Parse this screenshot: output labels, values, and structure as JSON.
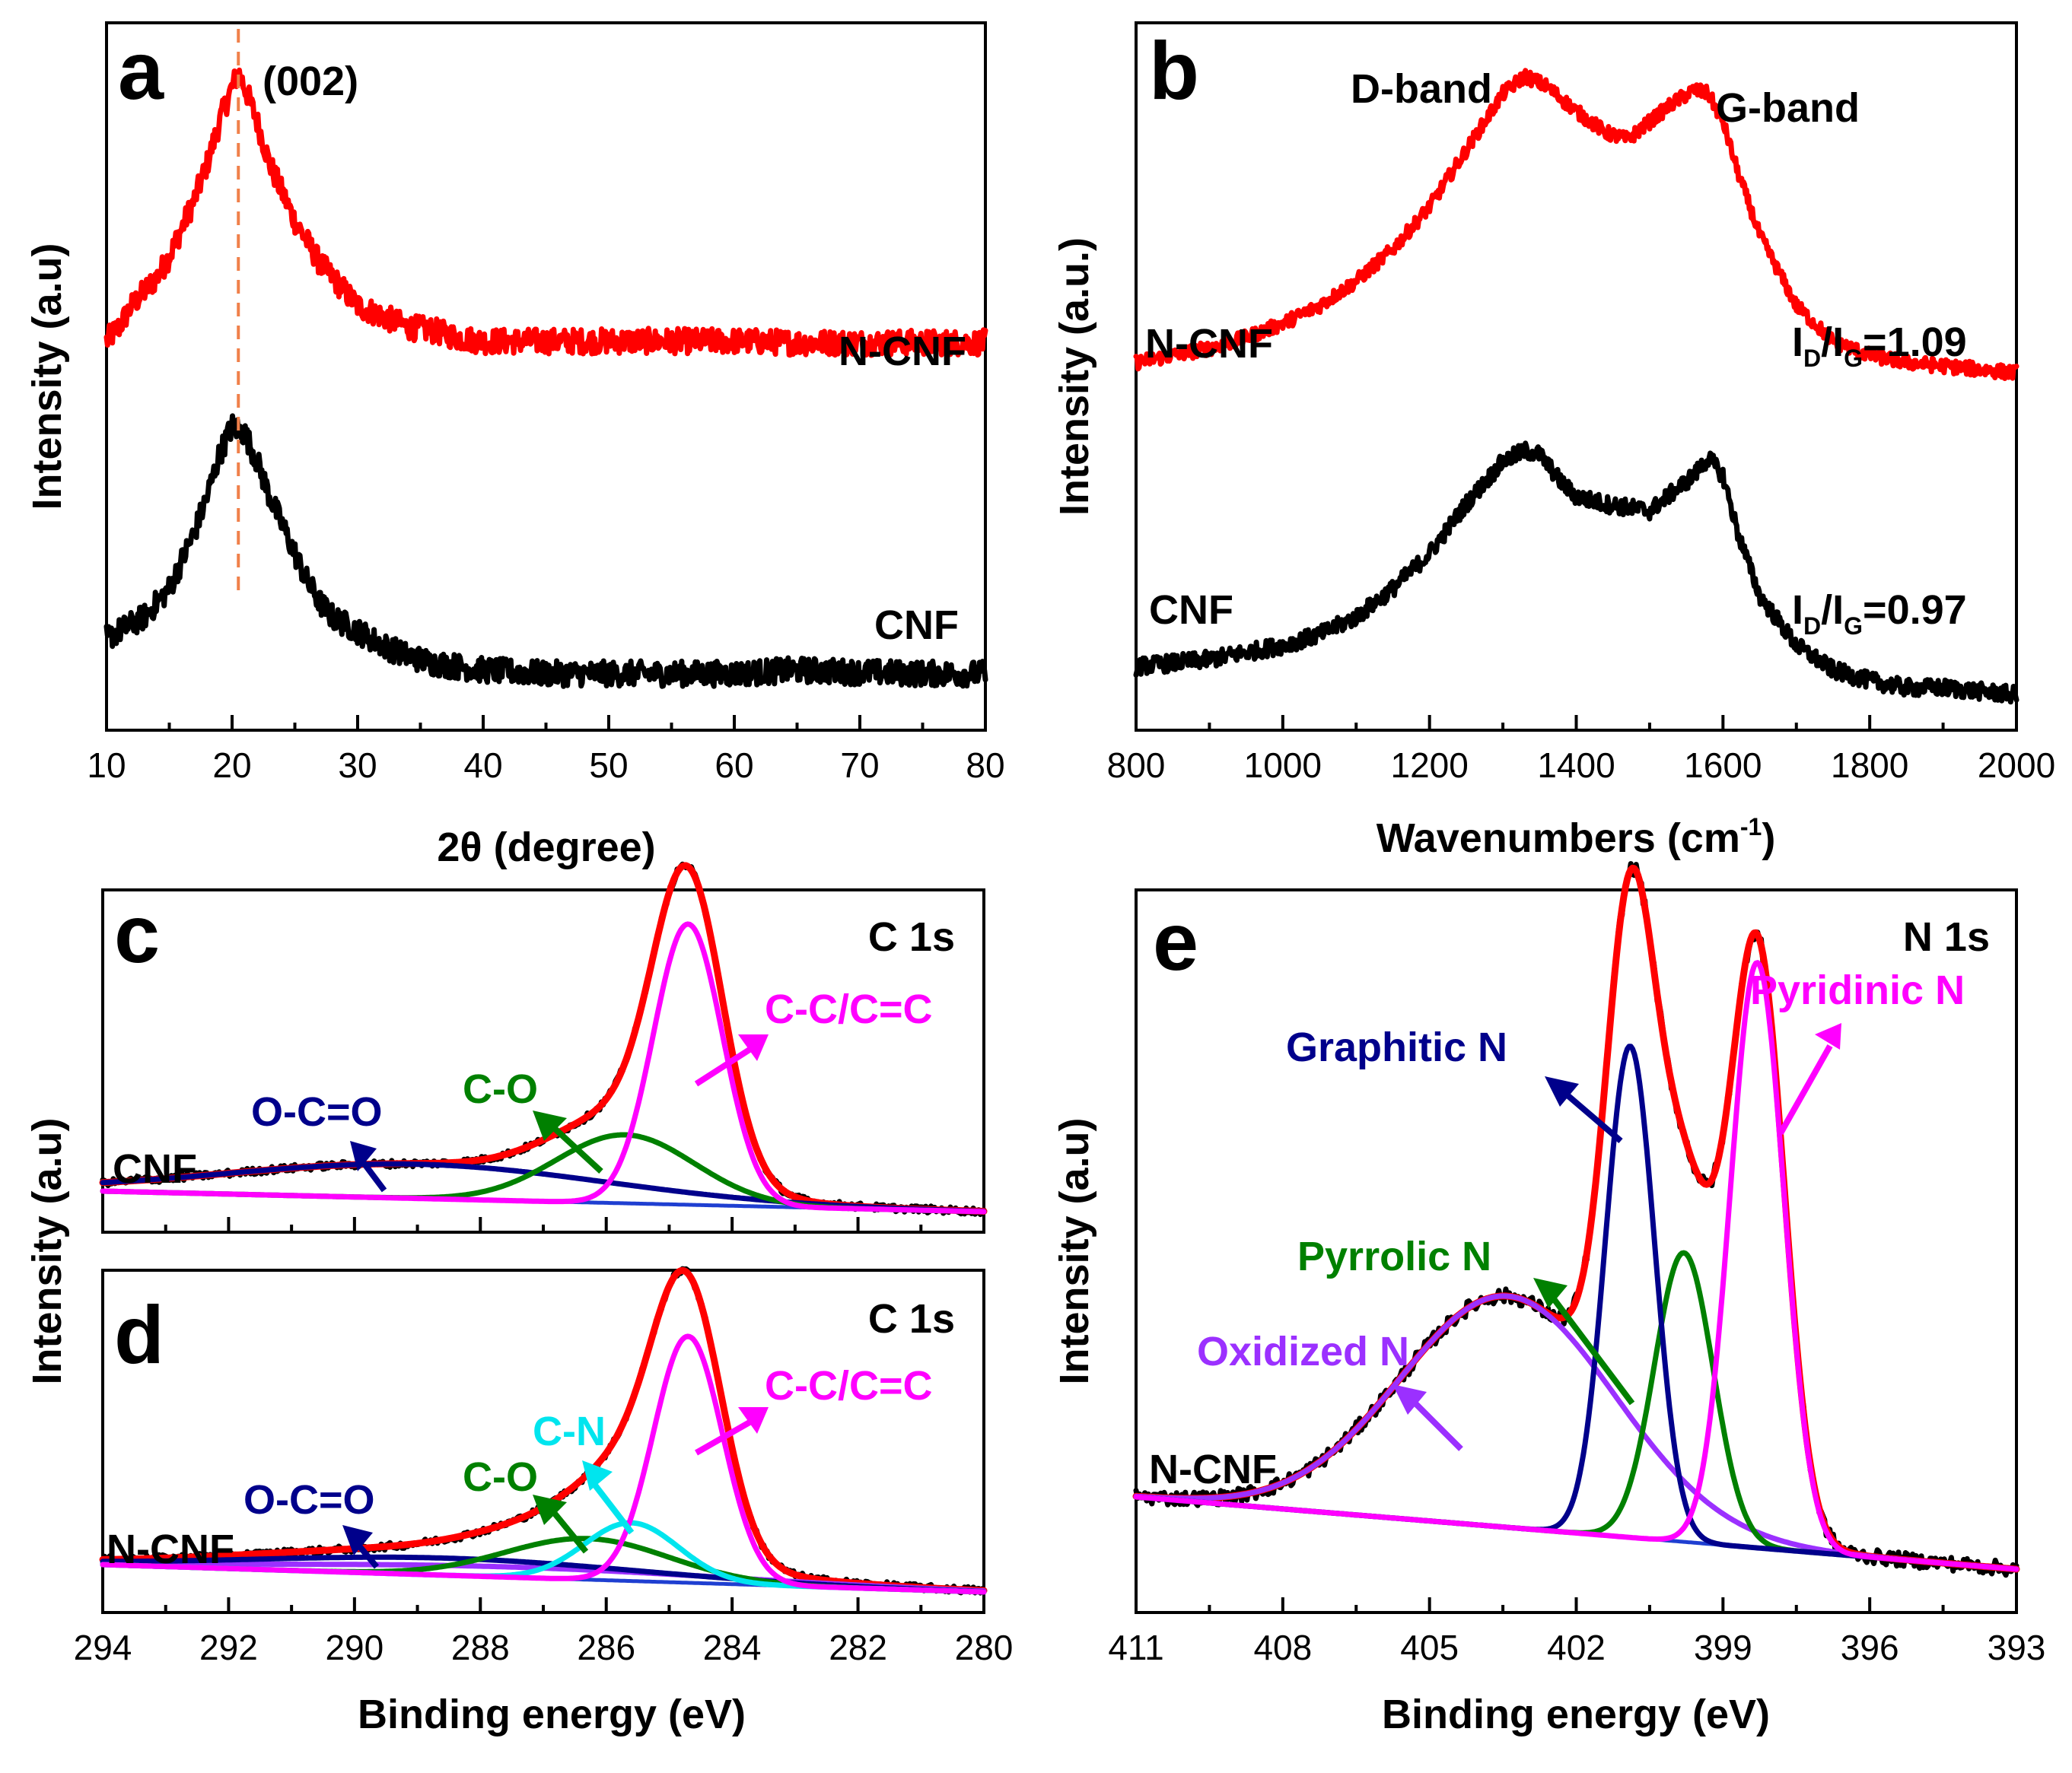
{
  "chart_data": [
    {
      "id": "a",
      "type": "line",
      "panel_label": "a",
      "xlabel": "2θ (degree)",
      "ylabel": "Intensity (a.u)",
      "xlim": [
        10,
        80
      ],
      "ylim": [
        0,
        1
      ],
      "x_ticks": [
        10,
        20,
        30,
        40,
        50,
        60,
        70,
        80
      ],
      "y_ticks_shown": false,
      "annotations": [
        {
          "text": "(002)"
        }
      ],
      "reference_line": {
        "x": 20.5,
        "style": "dashed",
        "color": "#f0804a"
      },
      "series": [
        {
          "name": "N-CNF",
          "color": "#ff0000",
          "noise": 0.018,
          "x": [
            10,
            11,
            12,
            13,
            14,
            15,
            16,
            17,
            18,
            19,
            19.8,
            20.5,
            21.2,
            22,
            23,
            24,
            25,
            26,
            27,
            28,
            29,
            30,
            32,
            34,
            36,
            38,
            40,
            45,
            50,
            55,
            60,
            65,
            70,
            75,
            80
          ],
          "y": [
            0.55,
            0.57,
            0.6,
            0.62,
            0.64,
            0.67,
            0.71,
            0.75,
            0.8,
            0.86,
            0.9,
            0.93,
            0.9,
            0.86,
            0.8,
            0.76,
            0.72,
            0.69,
            0.66,
            0.64,
            0.62,
            0.6,
            0.585,
            0.57,
            0.565,
            0.555,
            0.55,
            0.55,
            0.55,
            0.55,
            0.55,
            0.548,
            0.548,
            0.548,
            0.548
          ]
        },
        {
          "name": "CNF",
          "color": "#000000",
          "noise": 0.018,
          "x": [
            10,
            11,
            12,
            13,
            14,
            15,
            16,
            17,
            18,
            19,
            20,
            21,
            22,
            23,
            24,
            25,
            26,
            27,
            28,
            29,
            30,
            32,
            34,
            36,
            38,
            40,
            45,
            50,
            55,
            60,
            65,
            70,
            75,
            80
          ],
          "y": [
            0.13,
            0.14,
            0.15,
            0.16,
            0.18,
            0.2,
            0.24,
            0.28,
            0.33,
            0.39,
            0.43,
            0.42,
            0.38,
            0.33,
            0.29,
            0.25,
            0.21,
            0.18,
            0.16,
            0.15,
            0.14,
            0.12,
            0.105,
            0.095,
            0.09,
            0.085,
            0.08,
            0.08,
            0.08,
            0.08,
            0.085,
            0.082,
            0.08,
            0.08
          ]
        }
      ],
      "series_labels": [
        "N-CNF",
        "CNF"
      ]
    },
    {
      "id": "b",
      "type": "line",
      "panel_label": "b",
      "xlabel_main": "Wavenumbers (cm",
      "xlabel_sup": "-1",
      "xlabel_end": ")",
      "ylabel": "Intensity (a.u.)",
      "xlim": [
        800,
        2000
      ],
      "ylim": [
        0,
        1
      ],
      "x_ticks": [
        800,
        1000,
        1200,
        1400,
        1600,
        1800,
        2000
      ],
      "y_ticks_shown": false,
      "band_labels": [
        "D-band",
        "G-band"
      ],
      "ratio_labels": [
        {
          "sample": "N-CNF",
          "symbol_d": "I",
          "sub_d": "D",
          "slash": "/",
          "symbol_g": "I",
          "sub_g": "G",
          "value": "=1.09"
        },
        {
          "sample": "CNF",
          "symbol_d": "I",
          "sub_d": "D",
          "slash": "/",
          "symbol_g": "I",
          "sub_g": "G",
          "value": "=0.97"
        }
      ],
      "series": [
        {
          "name": "N-CNF",
          "color": "#ff0000",
          "noise": 0.01,
          "x": [
            800,
            850,
            900,
            950,
            1000,
            1050,
            1100,
            1150,
            1200,
            1250,
            1300,
            1330,
            1360,
            1400,
            1440,
            1470,
            1500,
            1530,
            1560,
            1580,
            1600,
            1620,
            1650,
            1700,
            1750,
            1800,
            1850,
            1900,
            1950,
            2000
          ],
          "y": [
            0.52,
            0.53,
            0.54,
            0.555,
            0.575,
            0.6,
            0.635,
            0.68,
            0.74,
            0.82,
            0.9,
            0.925,
            0.91,
            0.875,
            0.845,
            0.835,
            0.86,
            0.885,
            0.905,
            0.9,
            0.86,
            0.79,
            0.7,
            0.6,
            0.55,
            0.53,
            0.52,
            0.515,
            0.51,
            0.505
          ]
        },
        {
          "name": "CNF",
          "color": "#000000",
          "noise": 0.012,
          "x": [
            800,
            850,
            900,
            950,
            1000,
            1050,
            1100,
            1150,
            1200,
            1250,
            1300,
            1330,
            1350,
            1380,
            1400,
            1440,
            1470,
            1500,
            1530,
            1560,
            1580,
            1600,
            1620,
            1650,
            1700,
            1750,
            1800,
            1850,
            1900,
            1950,
            2000
          ],
          "y": [
            0.09,
            0.095,
            0.1,
            0.11,
            0.12,
            0.135,
            0.16,
            0.2,
            0.25,
            0.32,
            0.38,
            0.395,
            0.39,
            0.35,
            0.33,
            0.32,
            0.315,
            0.31,
            0.335,
            0.36,
            0.385,
            0.36,
            0.28,
            0.19,
            0.12,
            0.085,
            0.07,
            0.06,
            0.06,
            0.055,
            0.05
          ]
        }
      ],
      "series_labels": [
        "N-CNF",
        "CNF"
      ]
    },
    {
      "id": "c",
      "type": "line",
      "panel_label": "c",
      "title": "C 1s",
      "sample_label": "CNF",
      "xlim": [
        294,
        280
      ],
      "ylim": [
        0,
        1
      ],
      "x_ticks": [
        294,
        292,
        290,
        288,
        286,
        284,
        282,
        280
      ],
      "x_tick_labels_shown": false,
      "components": [
        {
          "name": "C-C/C=C",
          "color": "#ff00ff",
          "center": 284.7,
          "height": 0.82,
          "width": 0.55
        },
        {
          "name": "C-O",
          "color": "#008000",
          "center": 285.7,
          "height": 0.2,
          "width": 1.1
        },
        {
          "name": "O-C=O",
          "color": "#00008b",
          "center": 289.0,
          "height": 0.1,
          "width": 3.0
        }
      ],
      "envelope": {
        "color": "#ff0000"
      },
      "raw": {
        "color": "#000000"
      },
      "baseline": {
        "color": "#1f3fd1",
        "left": 0.06,
        "right": 0.0
      },
      "labels": [
        "C-C/C=C",
        "C-O",
        "O-C=O"
      ]
    },
    {
      "id": "d",
      "type": "line",
      "panel_label": "d",
      "title": "C 1s",
      "sample_label": "N-CNF",
      "xlabel": "Binding energy (eV)",
      "xlim": [
        294,
        280
      ],
      "ylim": [
        0,
        1
      ],
      "x_ticks": [
        294,
        292,
        290,
        288,
        286,
        284,
        282,
        280
      ],
      "components": [
        {
          "name": "C-C/C=C",
          "color": "#ff00ff",
          "center": 284.7,
          "height": 0.72,
          "width": 0.55
        },
        {
          "name": "C-N",
          "color": "#00e5ee",
          "center": 285.6,
          "height": 0.17,
          "width": 0.75
        },
        {
          "name": "C-O",
          "color": "#008000",
          "center": 286.3,
          "height": 0.12,
          "width": 1.3
        },
        {
          "name": "O-C=O",
          "color": "#00008b",
          "center": 288.5,
          "height": 0.05,
          "width": 3.0
        },
        {
          "name": "",
          "color": "#9b30ff",
          "center": 287.5,
          "height": 0.03,
          "width": 3.5
        }
      ],
      "envelope": {
        "color": "#ff0000"
      },
      "raw": {
        "color": "#000000"
      },
      "baseline": {
        "color": "#1f3fd1",
        "left": 0.08,
        "right": 0.0
      },
      "labels": [
        "C-C/C=C",
        "C-N",
        "C-O",
        "O-C=O"
      ]
    },
    {
      "id": "e",
      "type": "line",
      "panel_label": "e",
      "title": "N 1s",
      "sample_label": "N-CNF",
      "xlabel": "Binding energy (eV)",
      "xlim": [
        411,
        393
      ],
      "ylim": [
        0,
        1
      ],
      "x_ticks": [
        411,
        408,
        405,
        402,
        399,
        396,
        393
      ],
      "components": [
        {
          "name": "Pyridinic N",
          "color": "#ff00ff",
          "center": 398.3,
          "height": 0.81,
          "width": 0.55
        },
        {
          "name": "Graphitic N",
          "color": "#00008b",
          "center": 400.9,
          "height": 0.68,
          "width": 0.5
        },
        {
          "name": "Pyrrolic N",
          "color": "#008000",
          "center": 399.8,
          "height": 0.4,
          "width": 0.6
        },
        {
          "name": "Oxidized N",
          "color": "#9b30ff",
          "center": 403.4,
          "height": 0.32,
          "width": 2.2
        }
      ],
      "envelope": {
        "color": "#ff0000"
      },
      "raw": {
        "color": "#000000"
      },
      "baseline": {
        "color": "#1f3fd1",
        "left": 0.1,
        "right": 0.0
      },
      "labels": [
        "Graphitic N",
        "Pyridinic N",
        "Pyrrolic N",
        "Oxidized N"
      ]
    }
  ],
  "shared_ylabel": "Intensity (a.u)",
  "panel_c_sample": "CNF"
}
